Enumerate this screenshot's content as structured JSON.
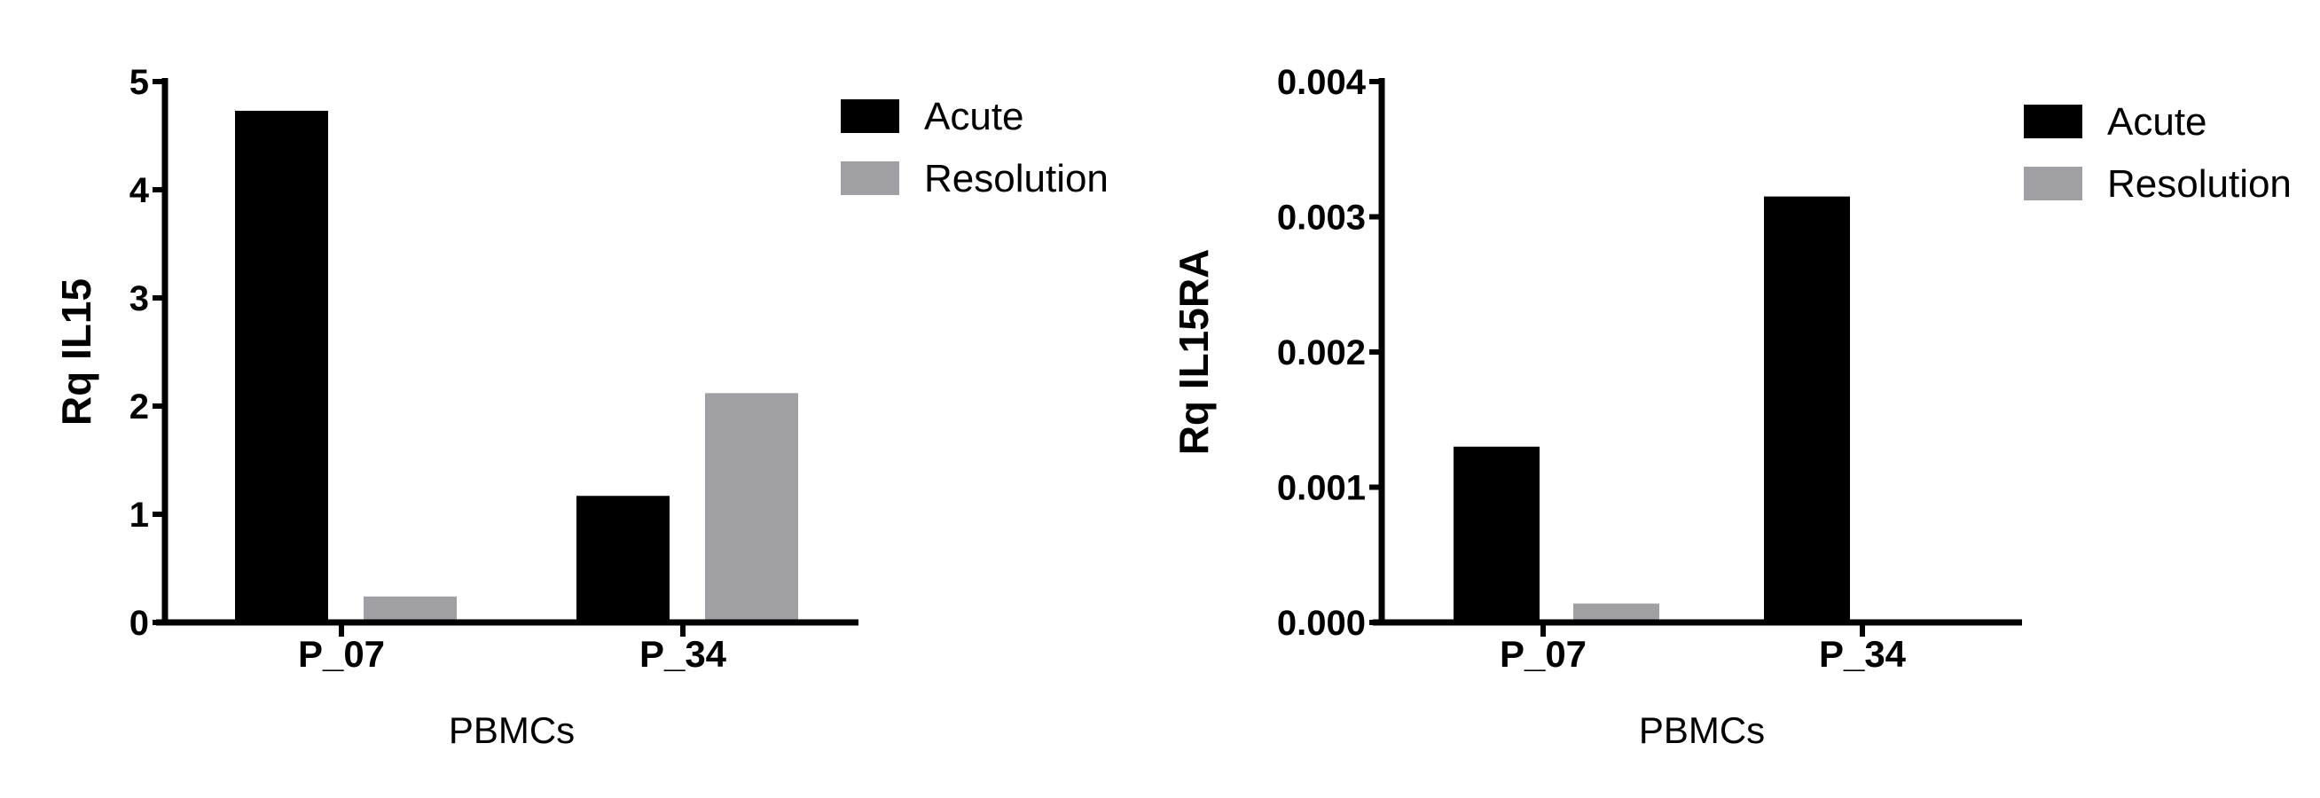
{
  "chart_data": [
    {
      "type": "bar",
      "categories": [
        "P_07",
        "P_34"
      ],
      "series": [
        {
          "name": "Acute",
          "values": [
            4.73,
            1.17
          ],
          "color": "#000000"
        },
        {
          "name": "Resolution",
          "values": [
            0.24,
            2.12
          ],
          "color": "#a0a0a4"
        }
      ],
      "xlabel": "PBMCs",
      "ylabel": "Rq IL15",
      "ylim": [
        0,
        5
      ],
      "yticks": [
        0,
        1,
        2,
        3,
        4,
        5
      ],
      "yticks_labels": [
        "0",
        "1",
        "2",
        "3",
        "4",
        "5"
      ],
      "grid": false,
      "legend_position": "top-right"
    },
    {
      "type": "bar",
      "categories": [
        "P_07",
        "P_34"
      ],
      "series": [
        {
          "name": "Acute",
          "values": [
            0.0013,
            0.00315
          ],
          "color": "#000000"
        },
        {
          "name": "Resolution",
          "values": [
            0.00014,
            0
          ],
          "color": "#a0a0a4"
        }
      ],
      "xlabel": "PBMCs",
      "ylabel": "Rq IL15RA",
      "ylim": [
        0,
        0.004
      ],
      "yticks": [
        0,
        0.001,
        0.002,
        0.003,
        0.004
      ],
      "yticks_labels": [
        "0.000",
        "0.001",
        "0.002",
        "0.003",
        "0.004"
      ],
      "grid": false,
      "legend_position": "top-right"
    }
  ]
}
